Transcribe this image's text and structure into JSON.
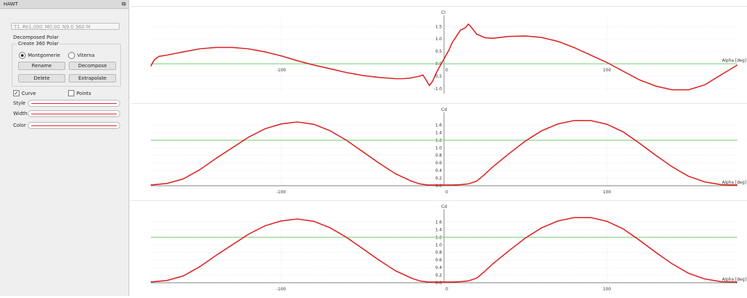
{
  "panel": {
    "title": "HAWT",
    "float_icon": "⧉",
    "polar_name": "T1_Re1.000_M0.00_N9.0 360 M",
    "polar_type": "Decomposed Polar",
    "group_title": "Create 360 Polar",
    "radio_montgomerie": "Montgomerie",
    "radio_viterna": "Viterna",
    "btn_rename": "Rename",
    "btn_decompose": "Decompose",
    "btn_delete": "Delete",
    "btn_extrapolate": "Extrapolate",
    "curve_label": "Curve",
    "points_label": "Points",
    "style_label": "Style",
    "width_label": "Width",
    "color_label": "Color",
    "curve_checked": true,
    "points_checked": false,
    "curve_color": "#dd2222"
  },
  "chart_data": [
    {
      "type": "line",
      "ylabel": "Cl",
      "xlabel": "Alpha [deg]",
      "xlim": [
        -180,
        180
      ],
      "ylim": [
        -1.2,
        1.9
      ],
      "yticks": [
        -1.0,
        -0.5,
        0.0,
        0.5,
        1.0,
        1.5
      ],
      "ytick_labels": [
        "-1.0",
        "-0.5",
        "0.0",
        "0.5",
        "1.0",
        "1.5"
      ],
      "xticks": [
        -100,
        0,
        100
      ],
      "xtick_labels": [
        "-100",
        "0",
        "100"
      ],
      "reference_line": 0.0,
      "series_color": "#dd2222",
      "reference_color": "#7ed37e",
      "x": [
        -180,
        -178,
        -175,
        -170,
        -160,
        -150,
        -140,
        -130,
        -120,
        -110,
        -100,
        -90,
        -80,
        -70,
        -60,
        -50,
        -40,
        -30,
        -25,
        -20,
        -15,
        -13,
        -11,
        -9,
        -7,
        -5,
        -3,
        0,
        3,
        5,
        8,
        10,
        13,
        15,
        17,
        20,
        25,
        30,
        40,
        50,
        60,
        70,
        80,
        90,
        100,
        110,
        120,
        130,
        140,
        150,
        160,
        170,
        175,
        180
      ],
      "y": [
        -0.1,
        0.15,
        0.3,
        0.35,
        0.48,
        0.6,
        0.66,
        0.66,
        0.6,
        0.48,
        0.32,
        0.12,
        -0.05,
        -0.2,
        -0.35,
        -0.47,
        -0.55,
        -0.6,
        -0.6,
        -0.57,
        -0.5,
        -0.45,
        -0.65,
        -0.88,
        -0.7,
        -0.4,
        -0.15,
        0.2,
        0.55,
        0.85,
        1.15,
        1.35,
        1.45,
        1.6,
        1.45,
        1.2,
        1.05,
        1.03,
        1.1,
        1.12,
        1.06,
        0.9,
        0.65,
        0.35,
        0.05,
        -0.3,
        -0.65,
        -0.9,
        -1.05,
        -1.05,
        -0.85,
        -0.45,
        -0.25,
        -0.05
      ]
    },
    {
      "type": "line",
      "ylabel": "Cd",
      "xlabel": "Alpha [deg]",
      "xlim": [
        -180,
        180
      ],
      "ylim": [
        0,
        1.9
      ],
      "yticks": [
        0.0,
        0.2,
        0.4,
        0.6,
        0.8,
        1.0,
        1.2,
        1.4,
        1.6
      ],
      "ytick_labels": [
        "0.0",
        "0.2",
        "0.4",
        "0.6",
        "0.8",
        "1.0",
        "1.2",
        "1.4",
        "1.6"
      ],
      "xticks": [
        -100,
        0,
        100
      ],
      "xtick_labels": [
        "-100",
        "0",
        "100"
      ],
      "reference_line": 1.2,
      "series_color": "#dd2222",
      "reference_color": "#7ed37e",
      "x": [
        -180,
        -170,
        -160,
        -150,
        -140,
        -130,
        -120,
        -110,
        -100,
        -90,
        -80,
        -70,
        -60,
        -50,
        -40,
        -30,
        -20,
        -15,
        -10,
        -5,
        0,
        5,
        10,
        15,
        20,
        25,
        30,
        40,
        50,
        60,
        70,
        80,
        90,
        100,
        110,
        120,
        130,
        140,
        150,
        160,
        170,
        180
      ],
      "y": [
        0.02,
        0.06,
        0.18,
        0.42,
        0.72,
        1.0,
        1.28,
        1.5,
        1.63,
        1.68,
        1.62,
        1.45,
        1.2,
        0.9,
        0.6,
        0.32,
        0.12,
        0.05,
        0.02,
        0.02,
        0.02,
        0.02,
        0.03,
        0.05,
        0.12,
        0.3,
        0.5,
        0.85,
        1.18,
        1.45,
        1.63,
        1.72,
        1.72,
        1.62,
        1.42,
        1.12,
        0.8,
        0.5,
        0.25,
        0.1,
        0.03,
        0.02
      ]
    },
    {
      "type": "line",
      "ylabel": "Cd",
      "xlabel": "Alpha [deg]",
      "xlim": [
        -180,
        180
      ],
      "ylim": [
        0,
        1.9
      ],
      "yticks": [
        0.0,
        0.2,
        0.4,
        0.6,
        0.8,
        1.0,
        1.2,
        1.4,
        1.6
      ],
      "ytick_labels": [
        "0.0",
        "0.2",
        "0.4",
        "0.6",
        "0.8",
        "1.0",
        "1.2",
        "1.4",
        "1.6"
      ],
      "xticks": [
        -100,
        0,
        100
      ],
      "xtick_labels": [
        "-100",
        "0",
        "100"
      ],
      "reference_line": 1.2,
      "series_color": "#dd2222",
      "reference_color": "#7ed37e",
      "x": [
        -180,
        -170,
        -160,
        -150,
        -140,
        -130,
        -120,
        -110,
        -100,
        -90,
        -80,
        -70,
        -60,
        -50,
        -40,
        -30,
        -20,
        -15,
        -10,
        -5,
        0,
        5,
        10,
        15,
        20,
        25,
        30,
        40,
        50,
        60,
        70,
        80,
        90,
        100,
        110,
        120,
        130,
        140,
        150,
        160,
        170,
        180
      ],
      "y": [
        0.02,
        0.06,
        0.18,
        0.42,
        0.72,
        1.0,
        1.28,
        1.5,
        1.63,
        1.68,
        1.62,
        1.45,
        1.2,
        0.9,
        0.6,
        0.32,
        0.12,
        0.05,
        0.02,
        0.02,
        0.02,
        0.02,
        0.03,
        0.05,
        0.12,
        0.3,
        0.5,
        0.85,
        1.18,
        1.45,
        1.63,
        1.72,
        1.72,
        1.62,
        1.42,
        1.12,
        0.8,
        0.5,
        0.25,
        0.1,
        0.03,
        0.02
      ]
    }
  ]
}
